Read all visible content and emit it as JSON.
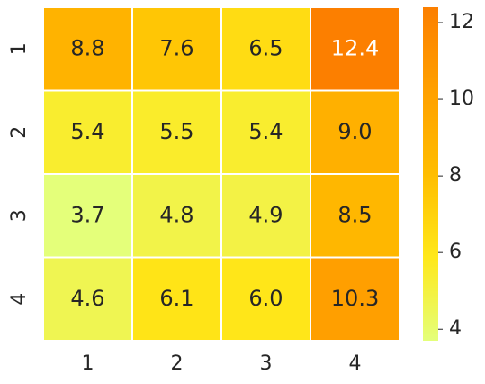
{
  "chart_data": {
    "type": "heatmap",
    "x_categories": [
      "1",
      "2",
      "3",
      "4"
    ],
    "y_categories": [
      "1",
      "2",
      "3",
      "4"
    ],
    "values": [
      [
        8.8,
        7.6,
        6.5,
        12.4
      ],
      [
        5.4,
        5.5,
        5.4,
        9.0
      ],
      [
        3.7,
        4.8,
        4.9,
        8.5
      ],
      [
        4.6,
        6.1,
        6.0,
        10.3
      ]
    ],
    "value_labels": [
      [
        "8.8",
        "7.6",
        "6.5",
        "12.4"
      ],
      [
        "5.4",
        "5.5",
        "5.4",
        "9.0"
      ],
      [
        "3.7",
        "4.8",
        "4.9",
        "8.5"
      ],
      [
        "4.6",
        "6.1",
        "6.0",
        "10.3"
      ]
    ],
    "colormap": [
      "#e4ff7a",
      "#ffe81a",
      "#ffbd00",
      "#ffa000",
      "#fc7f00"
    ],
    "clim": [
      3.7,
      12.4
    ],
    "cticks": [
      4,
      6,
      8,
      10,
      12
    ]
  }
}
